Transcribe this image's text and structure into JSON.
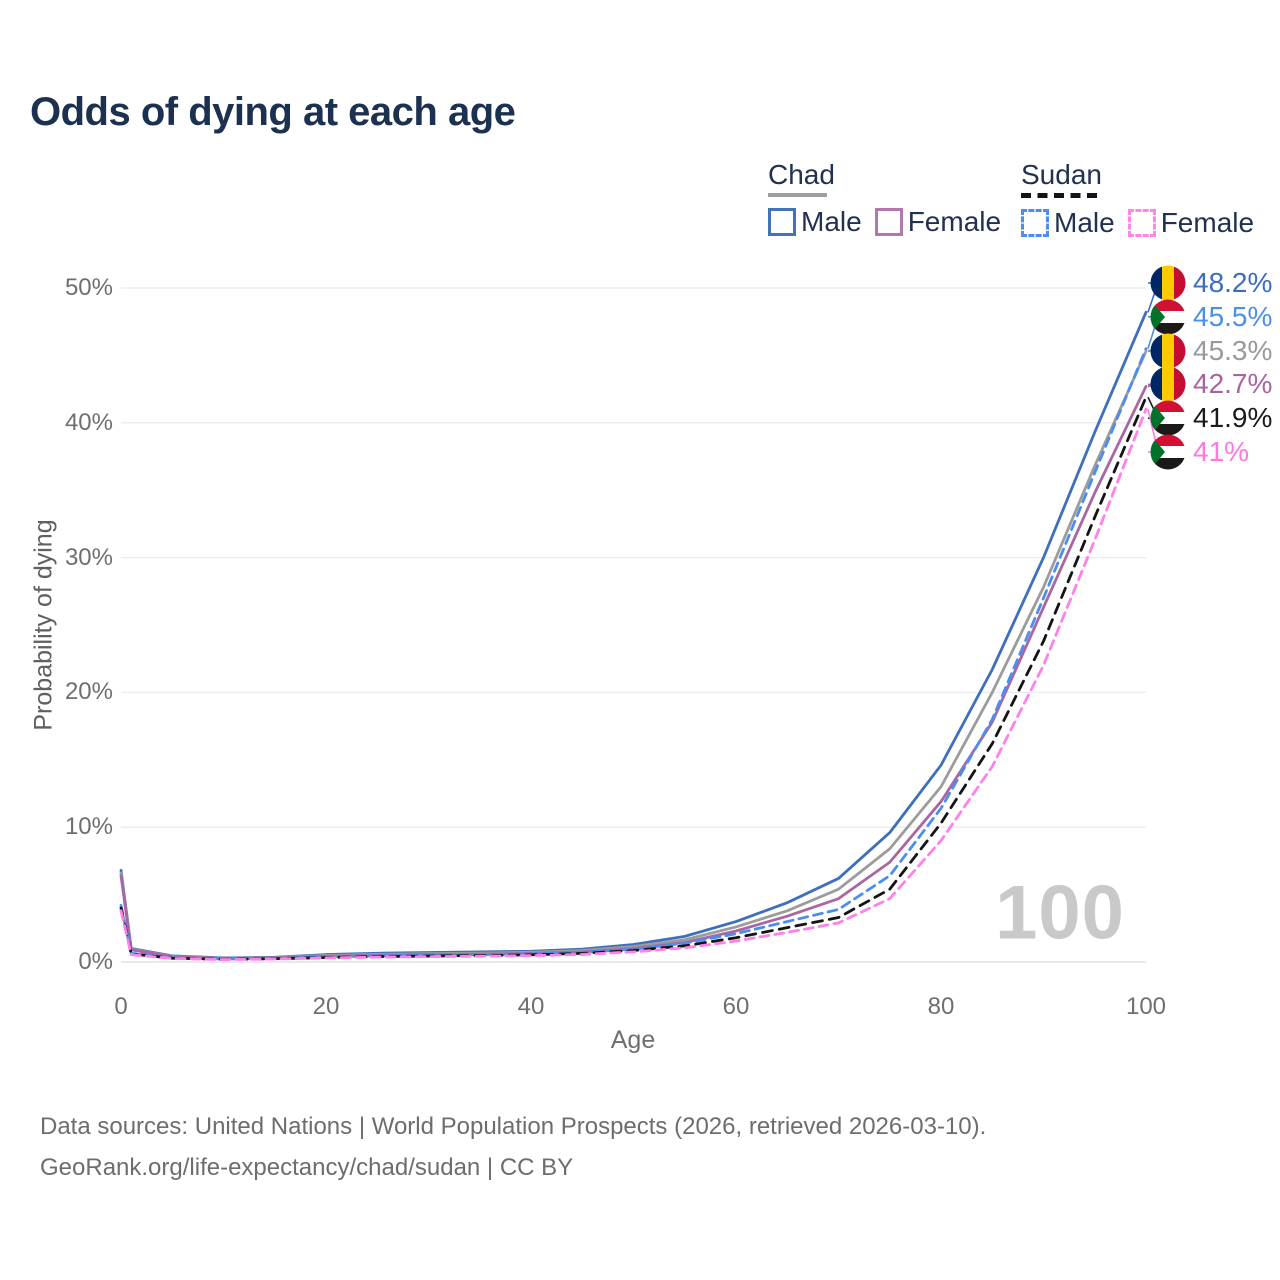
{
  "title": "Odds of dying at each age",
  "legend": {
    "groups": [
      {
        "label": "Chad",
        "line_style": "solid",
        "items": [
          {
            "label": "Male",
            "color": "#4272b8"
          },
          {
            "label": "Female",
            "color": "#b277ab"
          }
        ]
      },
      {
        "label": "Sudan",
        "line_style": "dashed",
        "items": [
          {
            "label": "Male",
            "color": "#4b8df0"
          },
          {
            "label": "Female",
            "color": "#ff85e8"
          }
        ]
      }
    ]
  },
  "chart_data": {
    "type": "line",
    "title": "Odds of dying at each age",
    "xlabel": "Age",
    "ylabel": "Probability of dying",
    "xlim": [
      0,
      100
    ],
    "ylim": [
      0,
      52
    ],
    "grid": "horizontal",
    "x_ticks": [
      {
        "value": 0,
        "label": "0"
      },
      {
        "value": 20,
        "label": "20"
      },
      {
        "value": 40,
        "label": "40"
      },
      {
        "value": 60,
        "label": "60"
      },
      {
        "value": 80,
        "label": "80"
      },
      {
        "value": 100,
        "label": "100"
      }
    ],
    "y_ticks": [
      {
        "value": 0,
        "label": "0%"
      },
      {
        "value": 10,
        "label": "10%"
      },
      {
        "value": 20,
        "label": "20%"
      },
      {
        "value": 30,
        "label": "30%"
      },
      {
        "value": 40,
        "label": "40%"
      },
      {
        "value": 50,
        "label": "50%"
      }
    ],
    "ages": [
      0,
      1,
      5,
      10,
      15,
      20,
      25,
      30,
      35,
      40,
      45,
      50,
      55,
      60,
      65,
      70,
      75,
      80,
      85,
      90,
      95,
      100
    ],
    "series": [
      {
        "name": "Chad Male",
        "country": "Chad",
        "sex": "Male",
        "color": "#3d6fbd",
        "dash": null,
        "values": [
          6.8,
          1.0,
          0.45,
          0.3,
          0.35,
          0.55,
          0.65,
          0.7,
          0.75,
          0.8,
          0.95,
          1.3,
          1.9,
          3.0,
          4.4,
          6.2,
          9.6,
          14.6,
          21.7,
          30.0,
          39.3,
          48.2
        ]
      },
      {
        "name": "Chad (all)",
        "country": "Chad",
        "sex": "Both",
        "color": "#9c9c9c",
        "dash": null,
        "values": [
          6.6,
          0.95,
          0.42,
          0.28,
          0.32,
          0.48,
          0.57,
          0.62,
          0.66,
          0.72,
          0.85,
          1.15,
          1.65,
          2.6,
          3.8,
          5.4,
          8.4,
          13.0,
          20.0,
          27.8,
          36.8,
          45.3
        ]
      },
      {
        "name": "Chad Female",
        "country": "Chad",
        "sex": "Female",
        "color": "#a867a3",
        "dash": null,
        "values": [
          6.4,
          0.9,
          0.4,
          0.26,
          0.3,
          0.42,
          0.5,
          0.55,
          0.58,
          0.64,
          0.75,
          1.0,
          1.45,
          2.3,
          3.4,
          4.7,
          7.4,
          11.9,
          17.8,
          26.3,
          34.8,
          42.7
        ]
      },
      {
        "name": "Sudan Male",
        "country": "Sudan",
        "sex": "Male",
        "color": "#4b8df0",
        "dash": "9 6",
        "values": [
          4.2,
          0.65,
          0.3,
          0.22,
          0.26,
          0.38,
          0.45,
          0.5,
          0.55,
          0.6,
          0.72,
          0.95,
          1.4,
          2.1,
          3.0,
          3.9,
          6.4,
          11.4,
          18.0,
          27.0,
          36.3,
          45.5
        ]
      },
      {
        "name": "Sudan (all)",
        "country": "Sudan",
        "sex": "Both",
        "color": "#141414",
        "dash": "10 7",
        "values": [
          4.0,
          0.6,
          0.28,
          0.2,
          0.24,
          0.33,
          0.4,
          0.44,
          0.48,
          0.53,
          0.64,
          0.85,
          1.2,
          1.8,
          2.55,
          3.3,
          5.4,
          10.3,
          16.2,
          23.8,
          33.0,
          41.9
        ]
      },
      {
        "name": "Sudan Female",
        "country": "Sudan",
        "sex": "Female",
        "color": "#ff80e8",
        "dash": "9 6",
        "values": [
          3.8,
          0.55,
          0.26,
          0.18,
          0.22,
          0.3,
          0.36,
          0.4,
          0.43,
          0.47,
          0.56,
          0.75,
          1.05,
          1.55,
          2.2,
          2.9,
          4.7,
          9.0,
          14.5,
          22.0,
          31.3,
          41.0
        ]
      }
    ],
    "end_labels": [
      {
        "text": "48.2%",
        "value": 48.2,
        "flag": "chad",
        "color": "#3b6cc0"
      },
      {
        "text": "45.5%",
        "value": 45.5,
        "flag": "sudan",
        "color": "#4a90e8"
      },
      {
        "text": "45.3%",
        "value": 45.3,
        "flag": "chad",
        "color": "#9a9a9a"
      },
      {
        "text": "42.7%",
        "value": 42.7,
        "flag": "chad",
        "color": "#a8649f"
      },
      {
        "text": "41.9%",
        "value": 41.9,
        "flag": "sudan",
        "color": "#1a1a1a"
      },
      {
        "text": "41%",
        "value": 41.0,
        "flag": "sudan",
        "color": "#ff78e0"
      }
    ],
    "watermark": "100"
  },
  "flags": {
    "chad": {
      "blue": "#002664",
      "yellow": "#fecb00",
      "red": "#c60c30"
    },
    "sudan": {
      "red": "#d21034",
      "white": "#ffffff",
      "black": "#1a1a1a",
      "green": "#007229"
    }
  },
  "footer": {
    "line1": "Data sources: United Nations | World Population Prospects (2026, retrieved 2026-03-10).",
    "line2": "GeoRank.org/life-expectancy/chad/sudan | CC BY"
  }
}
